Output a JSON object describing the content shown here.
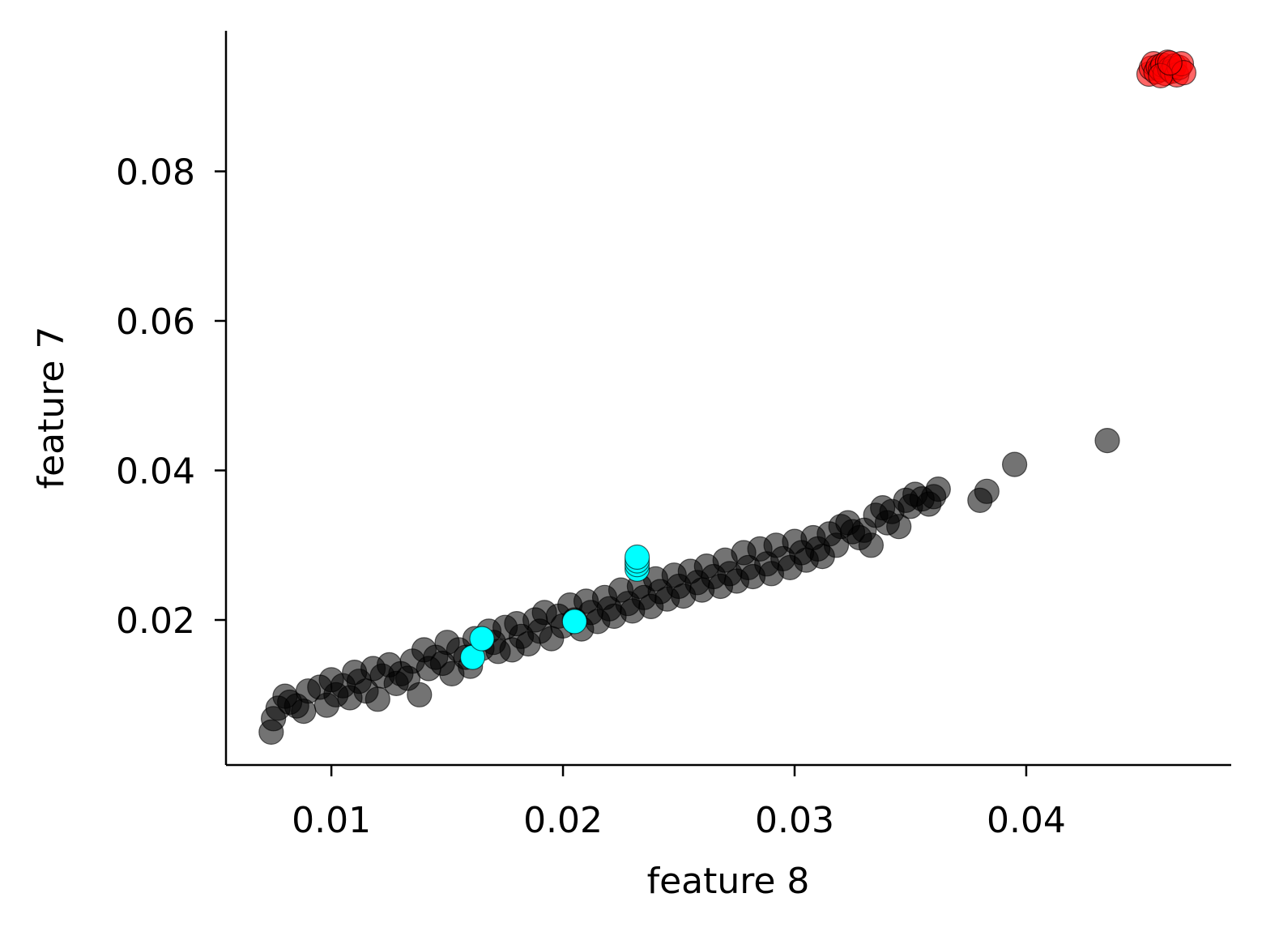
{
  "chart_data": {
    "type": "scatter",
    "title": "",
    "xlabel": "feature 8",
    "ylabel": "feature 7",
    "xlim": [
      0.00545,
      0.04885
    ],
    "ylim": [
      0.0006,
      0.0988
    ],
    "xticks": [
      {
        "value": 0.01,
        "label": "0.01"
      },
      {
        "value": 0.02,
        "label": "0.02"
      },
      {
        "value": 0.03,
        "label": "0.03"
      },
      {
        "value": 0.04,
        "label": "0.04"
      }
    ],
    "yticks": [
      {
        "value": 0.02,
        "label": "0.02"
      },
      {
        "value": 0.04,
        "label": "0.04"
      },
      {
        "value": 0.06,
        "label": "0.06"
      },
      {
        "value": 0.08,
        "label": "0.08"
      }
    ],
    "grid": false,
    "legend": "none",
    "series": [
      {
        "color": "#000000",
        "opacity": 0.55,
        "points": [
          [
            0.0074,
            0.005
          ],
          [
            0.0075,
            0.0068
          ],
          [
            0.0077,
            0.0082
          ],
          [
            0.008,
            0.0098
          ],
          [
            0.0082,
            0.009
          ],
          [
            0.0085,
            0.0085
          ],
          [
            0.0088,
            0.0078
          ],
          [
            0.009,
            0.0105
          ],
          [
            0.0095,
            0.011
          ],
          [
            0.0098,
            0.0086
          ],
          [
            0.01,
            0.012
          ],
          [
            0.0102,
            0.01
          ],
          [
            0.0105,
            0.0112
          ],
          [
            0.0108,
            0.0096
          ],
          [
            0.011,
            0.013
          ],
          [
            0.0112,
            0.0118
          ],
          [
            0.0115,
            0.0105
          ],
          [
            0.0118,
            0.0135
          ],
          [
            0.012,
            0.0094
          ],
          [
            0.0122,
            0.0125
          ],
          [
            0.0125,
            0.014
          ],
          [
            0.0128,
            0.0115
          ],
          [
            0.013,
            0.0128
          ],
          [
            0.0133,
            0.0122
          ],
          [
            0.0135,
            0.0145
          ],
          [
            0.0138,
            0.01
          ],
          [
            0.014,
            0.016
          ],
          [
            0.0142,
            0.0135
          ],
          [
            0.0145,
            0.015
          ],
          [
            0.0148,
            0.0142
          ],
          [
            0.015,
            0.017
          ],
          [
            0.0152,
            0.0128
          ],
          [
            0.0155,
            0.016
          ],
          [
            0.0158,
            0.015
          ],
          [
            0.016,
            0.0138
          ],
          [
            0.0162,
            0.0175
          ],
          [
            0.0165,
            0.0162
          ],
          [
            0.0168,
            0.0185
          ],
          [
            0.017,
            0.017
          ],
          [
            0.0172,
            0.0158
          ],
          [
            0.0175,
            0.019
          ],
          [
            0.0178,
            0.016
          ],
          [
            0.018,
            0.0195
          ],
          [
            0.0182,
            0.0178
          ],
          [
            0.0185,
            0.0168
          ],
          [
            0.0188,
            0.02
          ],
          [
            0.019,
            0.0185
          ],
          [
            0.0192,
            0.021
          ],
          [
            0.0195,
            0.0175
          ],
          [
            0.0198,
            0.0205
          ],
          [
            0.02,
            0.0192
          ],
          [
            0.0203,
            0.022
          ],
          [
            0.0205,
            0.02
          ],
          [
            0.0208,
            0.0188
          ],
          [
            0.021,
            0.0225
          ],
          [
            0.0212,
            0.021
          ],
          [
            0.0215,
            0.0198
          ],
          [
            0.0218,
            0.023
          ],
          [
            0.022,
            0.0215
          ],
          [
            0.0222,
            0.0205
          ],
          [
            0.0225,
            0.024
          ],
          [
            0.0228,
            0.0222
          ],
          [
            0.023,
            0.0212
          ],
          [
            0.0233,
            0.0245
          ],
          [
            0.0235,
            0.023
          ],
          [
            0.0238,
            0.0218
          ],
          [
            0.024,
            0.0255
          ],
          [
            0.0242,
            0.0238
          ],
          [
            0.0245,
            0.0228
          ],
          [
            0.0248,
            0.026
          ],
          [
            0.025,
            0.0245
          ],
          [
            0.0252,
            0.0232
          ],
          [
            0.0255,
            0.0265
          ],
          [
            0.0258,
            0.025
          ],
          [
            0.026,
            0.024
          ],
          [
            0.0262,
            0.0272
          ],
          [
            0.0265,
            0.0258
          ],
          [
            0.0268,
            0.0245
          ],
          [
            0.027,
            0.028
          ],
          [
            0.0272,
            0.0262
          ],
          [
            0.0275,
            0.0252
          ],
          [
            0.0278,
            0.029
          ],
          [
            0.028,
            0.027
          ],
          [
            0.0282,
            0.0258
          ],
          [
            0.0285,
            0.0295
          ],
          [
            0.0288,
            0.0275
          ],
          [
            0.029,
            0.0262
          ],
          [
            0.0292,
            0.03
          ],
          [
            0.0295,
            0.0282
          ],
          [
            0.0298,
            0.027
          ],
          [
            0.03,
            0.0305
          ],
          [
            0.0303,
            0.029
          ],
          [
            0.0305,
            0.028
          ],
          [
            0.0308,
            0.031
          ],
          [
            0.031,
            0.0295
          ],
          [
            0.0312,
            0.0285
          ],
          [
            0.0315,
            0.0315
          ],
          [
            0.0318,
            0.03
          ],
          [
            0.032,
            0.0325
          ],
          [
            0.0323,
            0.033
          ],
          [
            0.0325,
            0.0318
          ],
          [
            0.0328,
            0.031
          ],
          [
            0.033,
            0.032
          ],
          [
            0.0333,
            0.03
          ],
          [
            0.0335,
            0.034
          ],
          [
            0.0338,
            0.035
          ],
          [
            0.034,
            0.033
          ],
          [
            0.0342,
            0.0345
          ],
          [
            0.0345,
            0.0325
          ],
          [
            0.0348,
            0.036
          ],
          [
            0.035,
            0.0352
          ],
          [
            0.0352,
            0.0368
          ],
          [
            0.0355,
            0.0362
          ],
          [
            0.0358,
            0.0355
          ],
          [
            0.036,
            0.0365
          ],
          [
            0.0362,
            0.0375
          ],
          [
            0.038,
            0.036
          ],
          [
            0.0383,
            0.0372
          ],
          [
            0.0395,
            0.0408
          ],
          [
            0.0435,
            0.044
          ]
        ]
      },
      {
        "color": "#ff0000",
        "opacity": 0.6,
        "points": [
          [
            0.0453,
            0.093
          ],
          [
            0.0454,
            0.0938
          ],
          [
            0.0455,
            0.0944
          ],
          [
            0.0456,
            0.0933
          ],
          [
            0.0457,
            0.094
          ],
          [
            0.0458,
            0.0936
          ],
          [
            0.0459,
            0.0942
          ],
          [
            0.046,
            0.0931
          ],
          [
            0.0461,
            0.0946
          ],
          [
            0.0462,
            0.0937
          ],
          [
            0.0463,
            0.0934
          ],
          [
            0.0464,
            0.0941
          ],
          [
            0.0465,
            0.0929
          ],
          [
            0.0466,
            0.0939
          ],
          [
            0.0467,
            0.0944
          ],
          [
            0.0468,
            0.0932
          ],
          [
            0.0458,
            0.0928
          ],
          [
            0.0462,
            0.0945
          ]
        ]
      },
      {
        "color": "#00ffff",
        "opacity": 1,
        "points": [
          [
            0.0161,
            0.015
          ],
          [
            0.0165,
            0.0175
          ],
          [
            0.0205,
            0.0198
          ],
          [
            0.0232,
            0.0268
          ],
          [
            0.0232,
            0.0274
          ],
          [
            0.0232,
            0.0279
          ],
          [
            0.0232,
            0.0284
          ]
        ]
      }
    ]
  }
}
